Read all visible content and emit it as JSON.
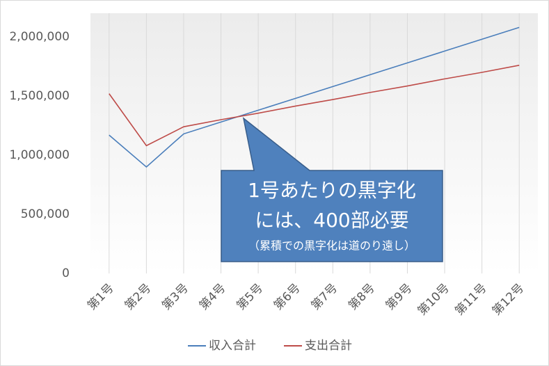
{
  "chart_data": {
    "type": "line",
    "categories": [
      "第1号",
      "第2号",
      "第3号",
      "第4号",
      "第5号",
      "第6号",
      "第7号",
      "第8号",
      "第9号",
      "第10号",
      "第11号",
      "第12号"
    ],
    "series": [
      {
        "name": "収入合計",
        "color": "#4a7ebb",
        "values": [
          1170000,
          900000,
          1180000,
          1280000,
          1380000,
          1480000,
          1580000,
          1680000,
          1780000,
          1880000,
          1980000,
          2080000
        ]
      },
      {
        "name": "支出合計",
        "color": "#be4b48",
        "values": [
          1520000,
          1080000,
          1240000,
          1300000,
          1355000,
          1415000,
          1470000,
          1530000,
          1585000,
          1645000,
          1700000,
          1760000
        ]
      }
    ],
    "ylim": [
      0,
      2200000
    ],
    "yticks": [
      0,
      {
        "value": 500000,
        "label": "500,000"
      },
      {
        "value": 1000000,
        "label": "1,000,000"
      },
      {
        "value": 1500000,
        "label": "1,500,000"
      },
      {
        "value": 2000000,
        "label": "2,000,000"
      }
    ],
    "grid": true,
    "legend": "bottom",
    "annotations": [
      "1号あたりの黒字化",
      "には、400部必要",
      "（累積での黒字化は道のり遠し）"
    ]
  }
}
